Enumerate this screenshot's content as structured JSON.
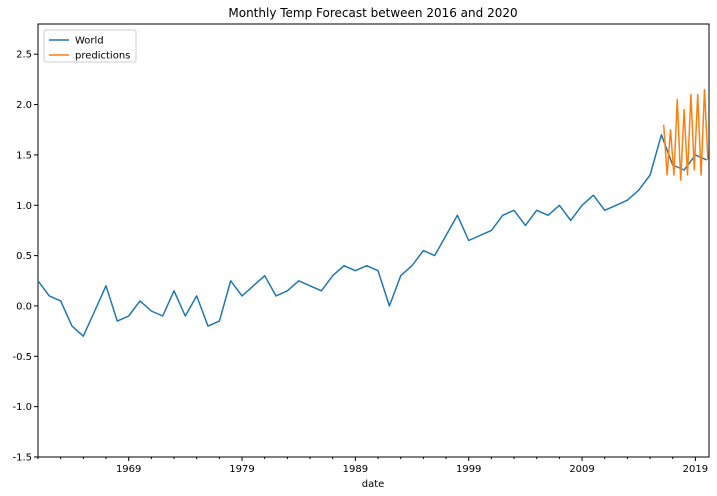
{
  "chart_data": {
    "type": "line",
    "title": "Monthly Temp Forecast between 2016 and 2020",
    "xlabel": "date",
    "ylabel": "",
    "x_range": [
      1961.0,
      2020.2
    ],
    "ylim": [
      -1.5,
      2.8
    ],
    "x_ticks": [
      1969,
      1979,
      1989,
      1999,
      2009,
      2019
    ],
    "y_ticks": [
      -1.5,
      -1.0,
      -0.5,
      0.0,
      0.5,
      1.0,
      1.5,
      2.0,
      2.5
    ],
    "legend_position": "top-left",
    "grid": false,
    "series": [
      {
        "name": "World",
        "color": "#1f77b4",
        "x": [
          1961,
          1962,
          1963,
          1964,
          1965,
          1966,
          1967,
          1968,
          1969,
          1970,
          1971,
          1972,
          1973,
          1974,
          1975,
          1976,
          1977,
          1978,
          1979,
          1980,
          1981,
          1982,
          1983,
          1984,
          1985,
          1986,
          1987,
          1988,
          1989,
          1990,
          1991,
          1992,
          1993,
          1994,
          1995,
          1996,
          1997,
          1998,
          1999,
          2000,
          2001,
          2002,
          2003,
          2004,
          2005,
          2006,
          2007,
          2008,
          2009,
          2010,
          2011,
          2012,
          2013,
          2014,
          2015,
          2016,
          2017,
          2018,
          2019,
          2020
        ],
        "y": [
          0.25,
          0.1,
          0.05,
          -0.2,
          -0.3,
          -0.05,
          0.2,
          -0.15,
          -0.1,
          0.05,
          -0.05,
          -0.1,
          0.15,
          -0.1,
          0.1,
          -0.2,
          -0.15,
          0.25,
          0.1,
          0.2,
          0.3,
          0.1,
          0.15,
          0.25,
          0.2,
          0.15,
          0.3,
          0.4,
          0.35,
          0.4,
          0.35,
          0.0,
          0.3,
          0.4,
          0.55,
          0.5,
          0.7,
          0.9,
          0.65,
          0.7,
          0.75,
          0.9,
          0.95,
          0.8,
          0.95,
          0.9,
          1.0,
          0.85,
          1.0,
          1.1,
          0.95,
          1.0,
          1.05,
          1.15,
          1.3,
          1.7,
          1.4,
          1.35,
          1.5,
          1.45
        ]
      },
      {
        "name": "predictions",
        "color": "#ff7f0e",
        "x": [
          2016.2,
          2016.5,
          2016.8,
          2017.1,
          2017.4,
          2017.7,
          2018.0,
          2018.3,
          2018.6,
          2018.9,
          2019.2,
          2019.5,
          2019.8,
          2020.1
        ],
        "y": [
          1.8,
          1.3,
          1.75,
          1.3,
          2.05,
          1.25,
          1.95,
          1.3,
          2.1,
          1.35,
          2.1,
          1.3,
          2.15,
          1.45
        ]
      }
    ]
  }
}
